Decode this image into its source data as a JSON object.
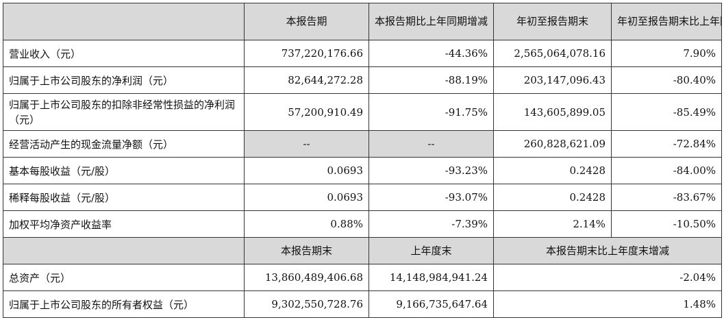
{
  "header": {
    "col1": "本报告期",
    "col2": "本报告期比上年同期增减",
    "col3": "年初至报告期末",
    "col4": "年初至报告期末比上年同期增减"
  },
  "rows": [
    {
      "label": "营业收入（元）",
      "v1": "737,220,176.66",
      "v2": "-44.36%",
      "v3": "2,565,064,078.16",
      "v4": "7.90%"
    },
    {
      "label": "归属于上市公司股东的净利润（元）",
      "v1": "82,644,272.28",
      "v2": "-88.19%",
      "v3": "203,147,096.43",
      "v4": "-80.40%"
    },
    {
      "label": "归属于上市公司股东的扣除非经常性损益的净利润（元）",
      "v1": "57,200,910.49",
      "v2": "-91.75%",
      "v3": "143,605,899.05",
      "v4": "-85.49%"
    },
    {
      "label": "经营活动产生的现金流量净额（元）",
      "v1": "--",
      "v2": "--",
      "v3": "260,828,621.09",
      "v4": "-72.84%"
    },
    {
      "label": "基本每股收益（元/股）",
      "v1": "0.0693",
      "v2": "-93.23%",
      "v3": "0.2428",
      "v4": "-84.00%"
    },
    {
      "label": "稀释每股收益（元/股）",
      "v1": "0.0693",
      "v2": "-93.07%",
      "v3": "0.2428",
      "v4": "-83.67%"
    },
    {
      "label": "加权平均净资产收益率",
      "v1": "0.88%",
      "v2": "-7.39%",
      "v3": "2.14%",
      "v4": "-10.50%"
    }
  ],
  "header2": {
    "col1": "本报告期末",
    "col2": "上年度末",
    "col3": "本报告期末比上年度末增减"
  },
  "rows2": [
    {
      "label": "总资产（元）",
      "v1": "13,860,489,406.68",
      "v2": "14,148,984,941.24",
      "v3": "-2.04%"
    },
    {
      "label": "归属于上市公司股东的所有者权益（元）",
      "v1": "9,302,550,728.76",
      "v2": "9,166,735,647.64",
      "v3": "1.48%"
    }
  ],
  "colors": {
    "header_bg": "#d9d9d9",
    "border": "#333333"
  }
}
